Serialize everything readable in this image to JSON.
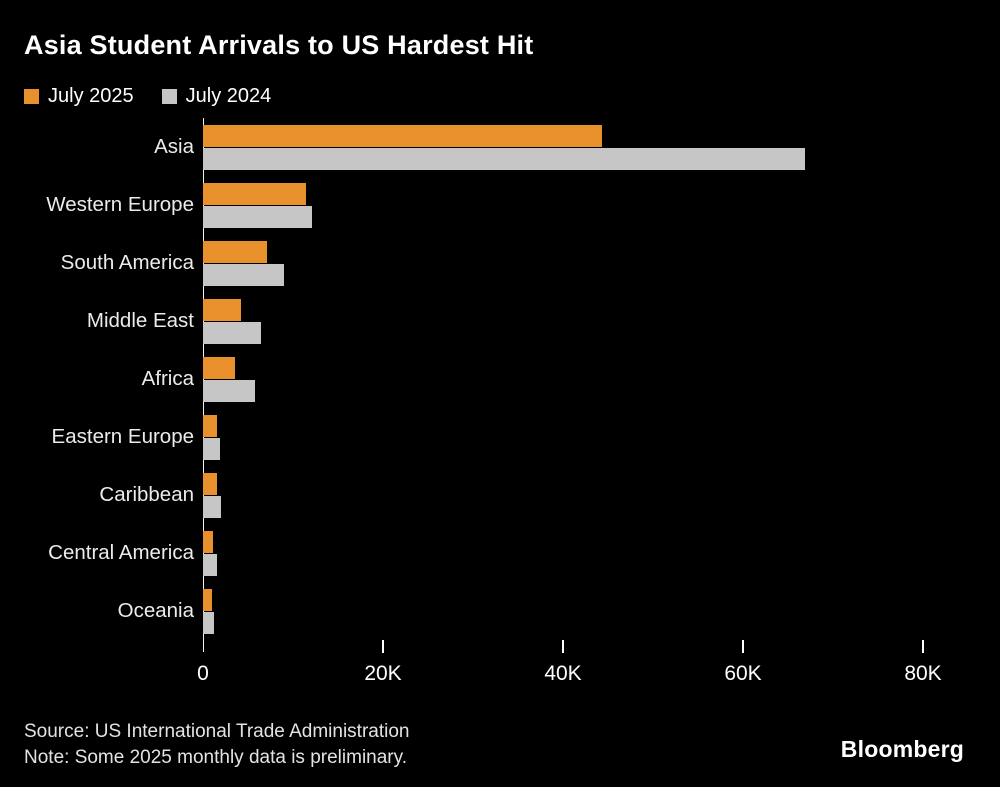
{
  "title": "Asia Student Arrivals to US Hardest Hit",
  "legend": [
    {
      "label": "July 2025",
      "color": "#e8912c"
    },
    {
      "label": "July 2024",
      "color": "#c6c6c6"
    }
  ],
  "chart_data": {
    "type": "bar",
    "orientation": "horizontal",
    "title": "Asia Student Arrivals to US Hardest Hit",
    "categories": [
      "Asia",
      "Western Europe",
      "South America",
      "Middle East",
      "Africa",
      "Eastern Europe",
      "Caribbean",
      "Central America",
      "Oceania"
    ],
    "series": [
      {
        "name": "July 2025",
        "color": "#e8912c",
        "values": [
          44300,
          11400,
          7100,
          4200,
          3600,
          1600,
          1500,
          1100,
          1000
        ]
      },
      {
        "name": "July 2024",
        "color": "#c6c6c6",
        "values": [
          66900,
          12100,
          9000,
          6400,
          5800,
          1900,
          2000,
          1600,
          1200
        ]
      }
    ],
    "xlim": [
      0,
      80000
    ],
    "x_ticks": [
      {
        "value": 0,
        "label": "0"
      },
      {
        "value": 20000,
        "label": "20K"
      },
      {
        "value": 40000,
        "label": "40K"
      },
      {
        "value": 60000,
        "label": "60K"
      },
      {
        "value": 80000,
        "label": "80K"
      }
    ],
    "grid": false,
    "legend_position": "top"
  },
  "footer": {
    "source": "Source: US International Trade Administration",
    "note": "Note: Some 2025 monthly data is preliminary.",
    "brand": "Bloomberg"
  },
  "colors": {
    "background": "#000000",
    "title_text": "#ffffff",
    "label_text": "#ebebe9",
    "axis": "#ffffff",
    "bar_july_2025": "#e8912c",
    "bar_july_2024": "#c6c6c6"
  }
}
